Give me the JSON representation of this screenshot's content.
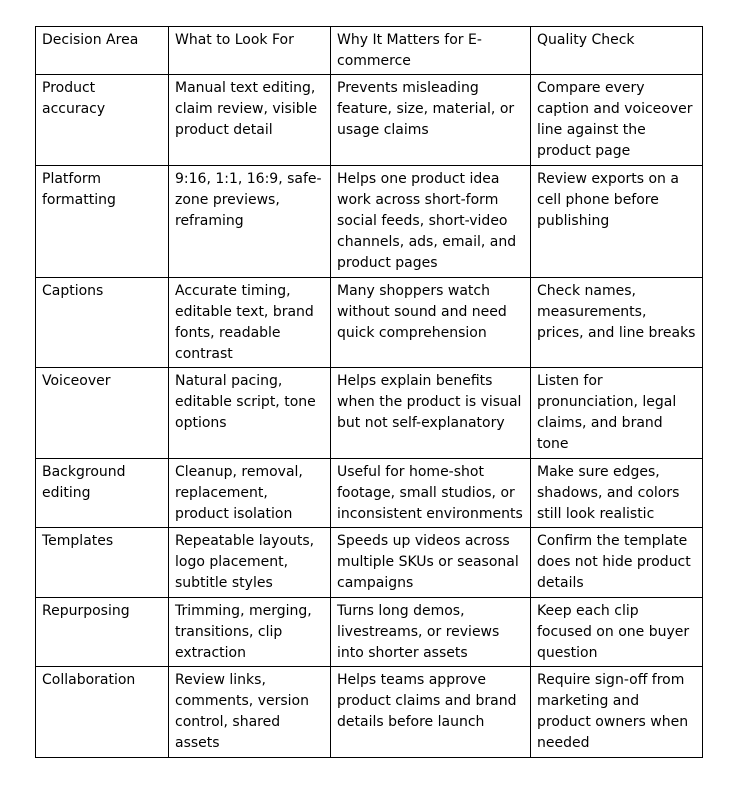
{
  "table": {
    "header": [
      "Decision Area",
      "What to Look For",
      "Why It Matters for E-commerce",
      "Quality Check"
    ],
    "rows": [
      [
        "Product accuracy",
        "Manual text editing, claim review, visible product detail",
        "Prevents misleading feature, size, material, or usage claims",
        "Compare every caption and voiceover line against the product page"
      ],
      [
        "Platform formatting",
        "9:16, 1:1, 16:9, safe-zone previews, reframing",
        "Helps one product idea work across short-form social feeds, short-video channels, ads, email, and product pages",
        "Review exports on a cell phone before publishing"
      ],
      [
        "Captions",
        "Accurate timing, editable text, brand fonts, readable contrast",
        "Many shoppers watch without sound and need quick comprehension",
        "Check names, measurements, prices, and line breaks"
      ],
      [
        "Voiceover",
        "Natural pacing, editable script, tone options",
        "Helps explain benefits when the product is visual but not self-explanatory",
        "Listen for pronunciation, legal claims, and brand tone"
      ],
      [
        "Background editing",
        "Cleanup, removal, replacement, product isolation",
        "Useful for home-shot footage, small studios, or inconsistent environments",
        "Make sure edges, shadows, and colors still look realistic"
      ],
      [
        "Templates",
        "Repeatable layouts, logo placement, subtitle styles",
        "Speeds up videos across multiple SKUs or seasonal campaigns",
        "Confirm the template does not hide product details"
      ],
      [
        "Repurposing",
        "Trimming, merging, transitions, clip extraction",
        "Turns long demos, livestreams, or reviews into shorter assets",
        "Keep each clip focused on one buyer question"
      ],
      [
        "Collaboration",
        "Review links, comments, version control, shared assets",
        "Helps teams approve product claims and brand details before launch",
        "Require sign-off from marketing and product owners when needed"
      ]
    ]
  }
}
